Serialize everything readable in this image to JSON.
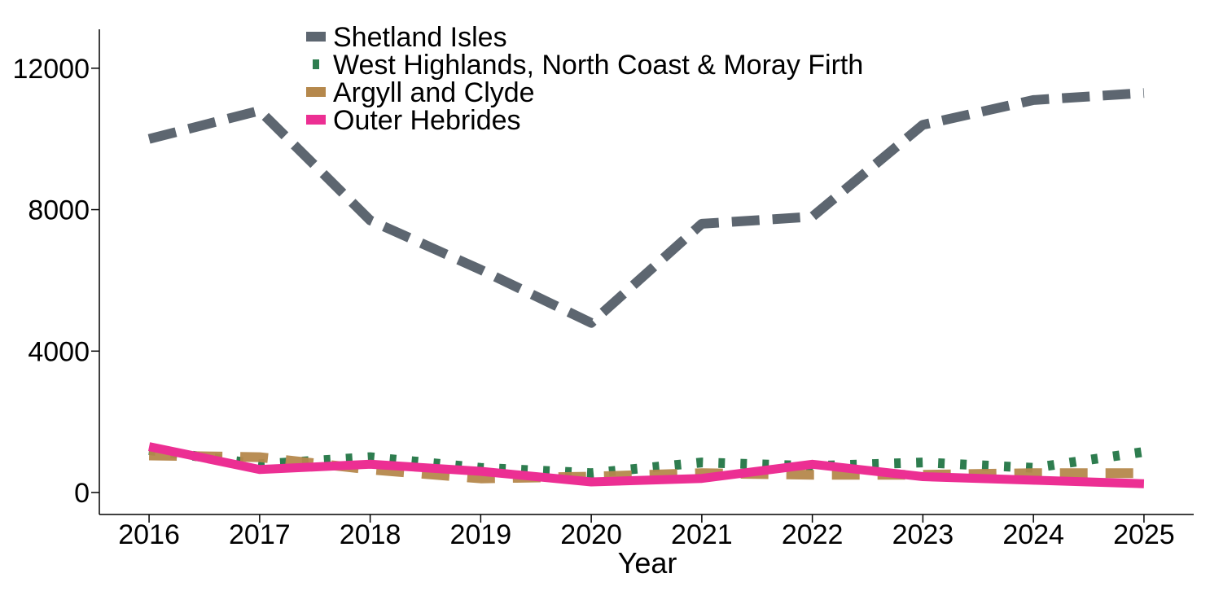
{
  "chart_data": {
    "type": "line",
    "title": "",
    "xlabel": "Year",
    "ylabel": "",
    "x": [
      2016,
      2017,
      2018,
      2019,
      2020,
      2021,
      2022,
      2023,
      2024,
      2025
    ],
    "xlim": [
      2015.55,
      2025.45
    ],
    "ylim": [
      -620,
      13100
    ],
    "yticks": [
      0,
      4000,
      8000,
      12000
    ],
    "grid": false,
    "legend_position": "top-center",
    "series": [
      {
        "name": "Shetland Isles",
        "values": [
          10000,
          10800,
          7700,
          6300,
          4800,
          7600,
          7800,
          10400,
          11100,
          11300
        ],
        "color": "#5d6670",
        "dash": "dashed"
      },
      {
        "name": "West Highlands, North Coast & Moray Firth",
        "values": [
          1200,
          800,
          1000,
          700,
          550,
          850,
          750,
          850,
          700,
          1150
        ],
        "color": "#2e7d4f",
        "dash": "dotted"
      },
      {
        "name": "Argyll and Clyde",
        "values": [
          1050,
          1000,
          650,
          400,
          450,
          550,
          500,
          500,
          550,
          550
        ],
        "color": "#b5884c",
        "dash": "longdash"
      },
      {
        "name": "Outer Hebrides",
        "values": [
          1300,
          650,
          800,
          600,
          300,
          400,
          800,
          450,
          350,
          250
        ],
        "color": "#ec2f93",
        "dash": "solid"
      }
    ]
  }
}
